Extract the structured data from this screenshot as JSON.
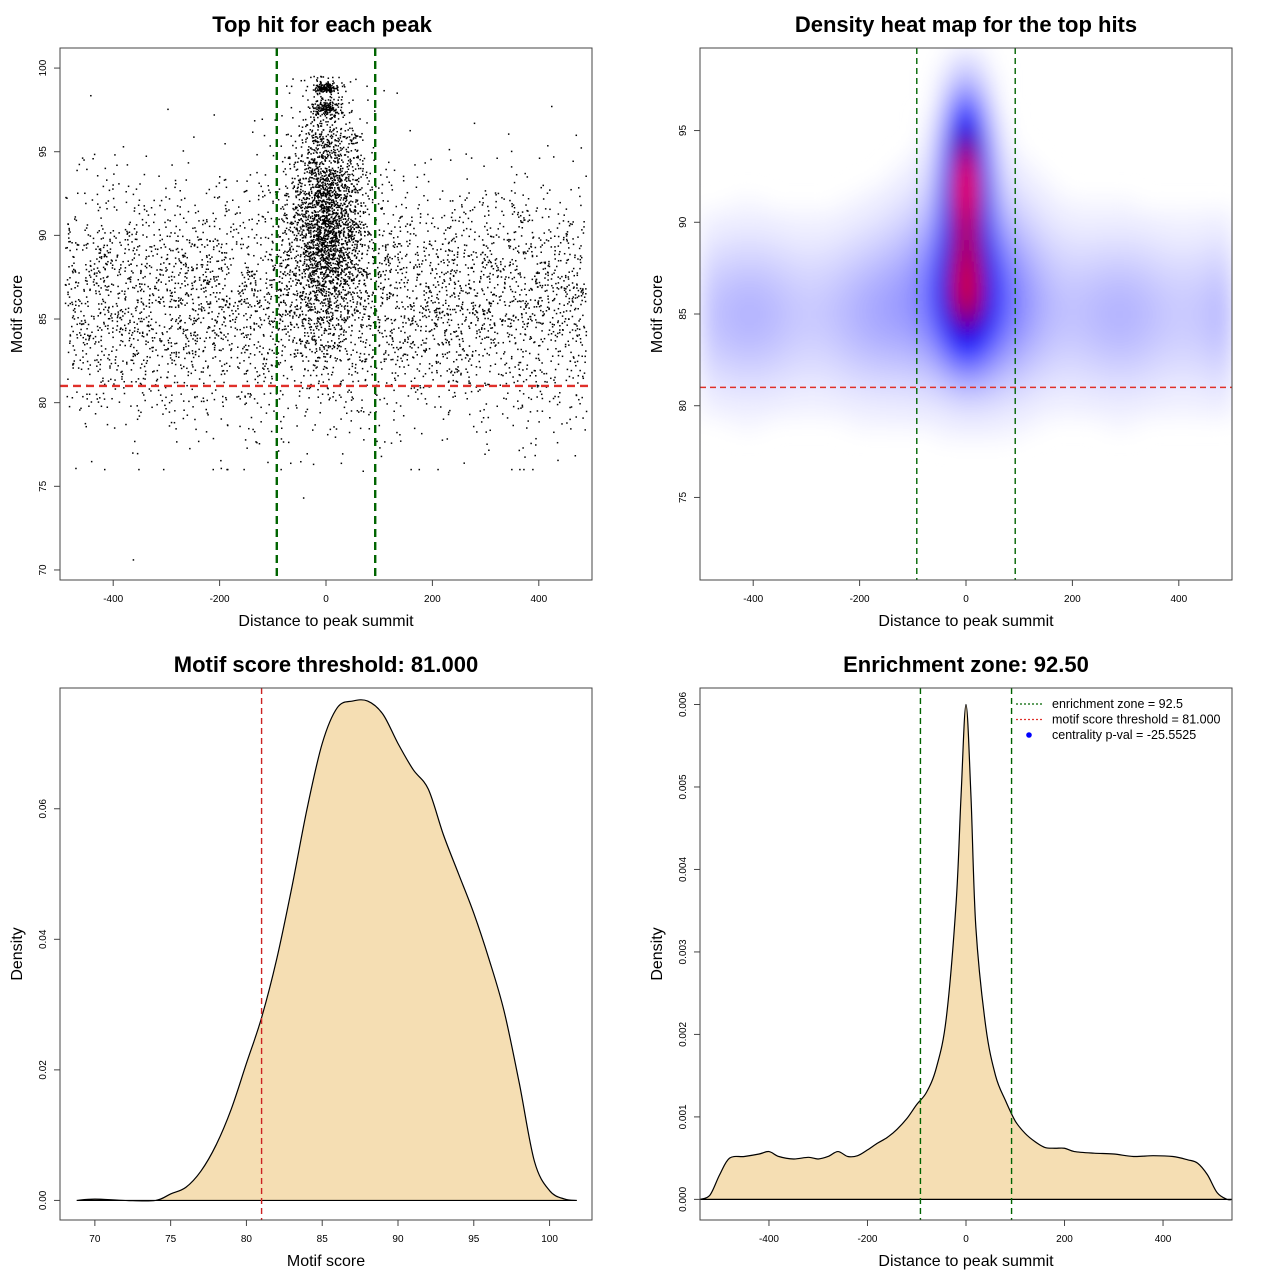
{
  "chart_data": [
    {
      "type": "scatter",
      "title": "Top hit for each peak",
      "xlabel": "Distance to peak summit",
      "ylabel": "Motif score",
      "xlim": [
        -500,
        500
      ],
      "ylim": [
        69.4,
        101.2
      ],
      "xticks": [
        "-400",
        "-200",
        "0",
        "200",
        "400"
      ],
      "yticks": [
        "70",
        "75",
        "80",
        "85",
        "90",
        "95",
        "100"
      ],
      "reference_lines": [
        {
          "orientation": "vertical",
          "value": -92.5,
          "color": "#006400",
          "style": "dashed"
        },
        {
          "orientation": "vertical",
          "value": 92.5,
          "color": "#006400",
          "style": "dashed"
        },
        {
          "orientation": "horizontal",
          "value": 81.0,
          "color": "#e0302a",
          "style": "dashed"
        }
      ],
      "point_color": "#000000",
      "description_points": {
        "background": {
          "x_range": [
            -490,
            490
          ],
          "y_range": [
            76,
            98.5
          ],
          "y_center": 86
        },
        "central_cluster": {
          "x_center": 0,
          "x_spread": 40,
          "y_range": [
            81,
            99.5
          ],
          "y_center": 91
        },
        "outliers": [
          [
            -362,
            70.6
          ],
          [
            -42,
            74.3
          ],
          [
            70,
            75.9
          ]
        ]
      }
    },
    {
      "type": "heatmap",
      "title": "Density heat map for the top hits",
      "xlabel": "Distance to peak summit",
      "ylabel": "Motif score",
      "xlim": [
        -500,
        500
      ],
      "ylim": [
        70.5,
        99.5
      ],
      "xticks": [
        "-400",
        "-200",
        "0",
        "200",
        "400"
      ],
      "yticks": [
        "75",
        "80",
        "85",
        "90",
        "95"
      ],
      "colormap": [
        "#ffffff",
        "#0000ff",
        "#ff0000"
      ],
      "peak": {
        "x": 0,
        "y": 92.5
      },
      "reference_lines": [
        {
          "orientation": "vertical",
          "value": -92.5,
          "color": "#006400",
          "style": "dashed"
        },
        {
          "orientation": "vertical",
          "value": 92.5,
          "color": "#006400",
          "style": "dashed"
        },
        {
          "orientation": "horizontal",
          "value": 81.0,
          "color": "#e0302a",
          "style": "dashed"
        }
      ]
    },
    {
      "type": "area",
      "title": "Motif score threshold: 81.000",
      "xlabel": "Motif score",
      "ylabel": "Density",
      "xlim": [
        67.7,
        102.8
      ],
      "ylim": [
        -0.003,
        0.0785
      ],
      "xticks": [
        "70",
        "75",
        "80",
        "85",
        "90",
        "95",
        "100"
      ],
      "yticks": [
        "0.00",
        "0.02",
        "0.04",
        "0.06"
      ],
      "fill_color": "#f5deb3",
      "line_color": "#000000",
      "x": [
        68.8,
        70,
        72,
        74,
        75,
        76,
        77,
        78,
        79,
        80,
        81,
        82,
        83,
        84,
        85,
        86,
        87,
        88,
        89,
        90,
        91,
        92,
        93,
        94,
        95,
        96,
        97,
        98,
        99,
        100,
        101,
        101.8
      ],
      "y": [
        0.0,
        0.0002,
        0.0,
        0.0,
        0.001,
        0.002,
        0.0045,
        0.0085,
        0.014,
        0.021,
        0.028,
        0.037,
        0.048,
        0.06,
        0.07,
        0.0755,
        0.0765,
        0.0765,
        0.0745,
        0.07,
        0.066,
        0.063,
        0.056,
        0.05,
        0.044,
        0.037,
        0.029,
        0.018,
        0.006,
        0.0015,
        0.0002,
        0.0
      ],
      "reference_lines": [
        {
          "orientation": "vertical",
          "value": 81.0,
          "color": "#cc2222",
          "style": "dashed"
        }
      ]
    },
    {
      "type": "area",
      "title": "Enrichment zone: 92.50",
      "xlabel": "Distance to peak summit",
      "ylabel": "Density",
      "xlim": [
        -540,
        540
      ],
      "ylim": [
        -0.00025,
        0.0062
      ],
      "xticks": [
        "-400",
        "-200",
        "0",
        "200",
        "400"
      ],
      "yticks": [
        "0.000",
        "0.001",
        "0.002",
        "0.003",
        "0.004",
        "0.005",
        "0.006"
      ],
      "fill_color": "#f5deb3",
      "line_color": "#000000",
      "x": [
        -540,
        -520,
        -500,
        -480,
        -450,
        -420,
        -400,
        -380,
        -350,
        -320,
        -300,
        -280,
        -260,
        -240,
        -220,
        -200,
        -180,
        -160,
        -140,
        -120,
        -100,
        -80,
        -60,
        -40,
        -20,
        -10,
        0,
        10,
        20,
        40,
        60,
        80,
        100,
        120,
        140,
        160,
        180,
        200,
        220,
        260,
        300,
        340,
        380,
        420,
        450,
        470,
        490,
        510,
        530,
        540
      ],
      "y": [
        0.0,
        5e-05,
        0.0003,
        0.0005,
        0.00052,
        0.00055,
        0.00058,
        0.00052,
        0.00049,
        0.00051,
        0.00049,
        0.00052,
        0.00058,
        0.00052,
        0.00053,
        0.0006,
        0.00068,
        0.00075,
        0.00085,
        0.00098,
        0.00115,
        0.0013,
        0.0016,
        0.0022,
        0.0036,
        0.0049,
        0.006,
        0.0049,
        0.0033,
        0.0021,
        0.0015,
        0.0012,
        0.00095,
        0.0008,
        0.0007,
        0.00063,
        0.00062,
        0.00062,
        0.00058,
        0.00056,
        0.00055,
        0.00052,
        0.00053,
        0.00052,
        0.00048,
        0.00044,
        0.0003,
        8e-05,
        0.0,
        0.0
      ],
      "reference_lines": [
        {
          "orientation": "vertical",
          "value": -92.5,
          "color": "#006400",
          "style": "dashed"
        },
        {
          "orientation": "vertical",
          "value": 92.5,
          "color": "#006400",
          "style": "dashed"
        }
      ],
      "legend": {
        "placement": "top-right",
        "entries": [
          {
            "label": "enrichment zone = 92.5",
            "color": "#006400",
            "symbol": "dotted-line"
          },
          {
            "label": "motif score threshold = 81.000",
            "color": "#e0302a",
            "symbol": "dotted-line"
          },
          {
            "label": "centrality p-val = -25.5525",
            "color": "#0000ff",
            "symbol": "point"
          }
        ]
      }
    }
  ]
}
